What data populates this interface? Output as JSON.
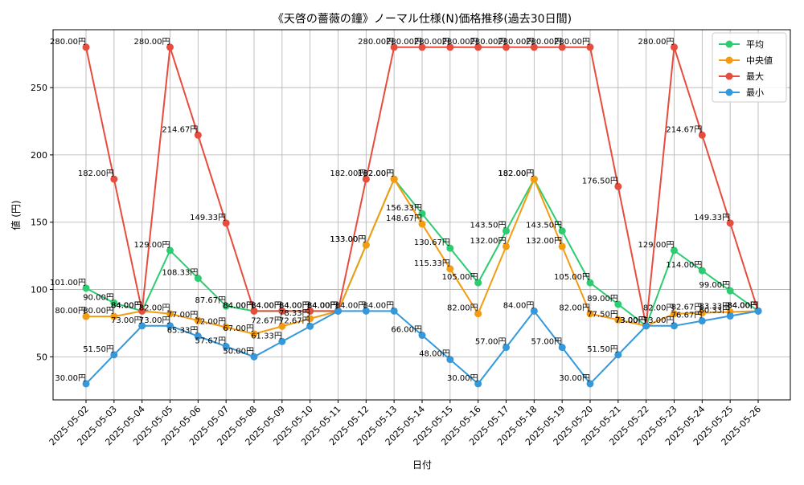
{
  "chart_data": {
    "type": "line",
    "title": "《天啓の薔薇の鐘》ノーマル仕様(N)価格推移(過去30日間)",
    "xlabel": "日付",
    "ylabel": "値 (円)",
    "unit_suffix": "円",
    "ylim": [
      18,
      293
    ],
    "yticks": [
      50,
      100,
      150,
      200,
      250
    ],
    "grid": true,
    "legend_position": "top-right",
    "categories": [
      "2025-05-02",
      "2025-05-03",
      "2025-05-04",
      "2025-05-05",
      "2025-05-06",
      "2025-05-07",
      "2025-05-08",
      "2025-05-09",
      "2025-05-10",
      "2025-05-11",
      "2025-05-12",
      "2025-05-13",
      "2025-05-14",
      "2025-05-15",
      "2025-05-16",
      "2025-05-17",
      "2025-05-18",
      "2025-05-19",
      "2025-05-20",
      "2025-05-21",
      "2025-05-22",
      "2025-05-23",
      "2025-05-24",
      "2025-05-25",
      "2025-05-26"
    ],
    "series": [
      {
        "name": "平均",
        "color": "#2ecc71",
        "values": [
          101.0,
          90.0,
          84.0,
          129.0,
          108.33,
          87.67,
          84.0,
          84.0,
          84.0,
          84.0,
          133.0,
          182.0,
          156.33,
          130.67,
          105.0,
          143.5,
          182.0,
          143.5,
          105.0,
          89.0,
          73.0,
          129.0,
          114.0,
          99.0,
          84.0
        ]
      },
      {
        "name": "中央値",
        "color": "#f39c12",
        "values": [
          80.0,
          80.0,
          84.0,
          82.0,
          77.0,
          72.0,
          67.0,
          72.67,
          78.33,
          84.0,
          133.0,
          182.0,
          148.67,
          115.33,
          82.0,
          132.0,
          182.0,
          132.0,
          82.0,
          77.5,
          73.0,
          82.0,
          82.67,
          83.33,
          84.0
        ]
      },
      {
        "name": "最大",
        "color": "#e74c3c",
        "values": [
          280.0,
          182.0,
          84.0,
          280.0,
          214.67,
          149.33,
          84.0,
          84.0,
          84.0,
          84.0,
          182.0,
          280.0,
          280.0,
          280.0,
          280.0,
          280.0,
          280.0,
          280.0,
          280.0,
          176.5,
          73.0,
          280.0,
          214.67,
          149.33,
          84.0
        ]
      },
      {
        "name": "最小",
        "color": "#3498db",
        "values": [
          30.0,
          51.5,
          73.0,
          73.0,
          65.33,
          57.67,
          50.0,
          61.33,
          72.67,
          84.0,
          84.0,
          84.0,
          66.0,
          48.0,
          30.0,
          57.0,
          84.0,
          57.0,
          30.0,
          51.5,
          73.0,
          73.0,
          76.67,
          80.33,
          84.0
        ]
      }
    ]
  }
}
